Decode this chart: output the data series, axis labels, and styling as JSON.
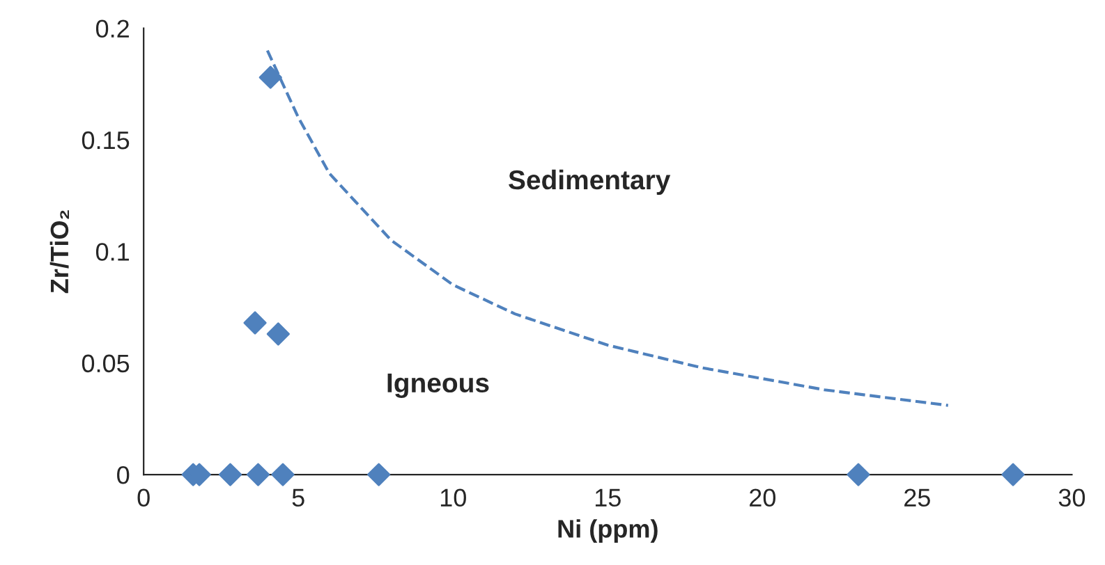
{
  "chart_data": {
    "type": "scatter",
    "xlabel": "Ni (ppm)",
    "ylabel": "Zr/TiO₂",
    "xlim": [
      0,
      30
    ],
    "ylim": [
      0,
      0.2
    ],
    "xticks": [
      0,
      5,
      10,
      15,
      20,
      25,
      30
    ],
    "yticks": [
      0,
      0.05,
      0.1,
      0.15,
      0.2
    ],
    "grid": false,
    "legend": false,
    "marker": "diamond",
    "series": [
      {
        "color": "#4f81bd",
        "x": [
          1.6,
          1.8,
          2.8,
          3.7,
          4.5,
          7.6,
          23.1,
          28.1,
          4.1,
          3.6,
          4.35
        ],
        "values": [
          0,
          0,
          0,
          0,
          0,
          0,
          0,
          0,
          0.178,
          0.068,
          0.063
        ]
      },
      {
        "type": "line",
        "color": "#4f81bd",
        "line_style": "dashed",
        "marker": "none",
        "x": [
          4.0,
          5,
          6,
          8,
          10,
          12,
          15,
          18,
          22,
          26
        ],
        "values": [
          0.19,
          0.16,
          0.135,
          0.105,
          0.085,
          0.072,
          0.058,
          0.048,
          0.038,
          0.031
        ]
      }
    ],
    "annotations": [
      "Sedimentary",
      "Igneous"
    ]
  }
}
